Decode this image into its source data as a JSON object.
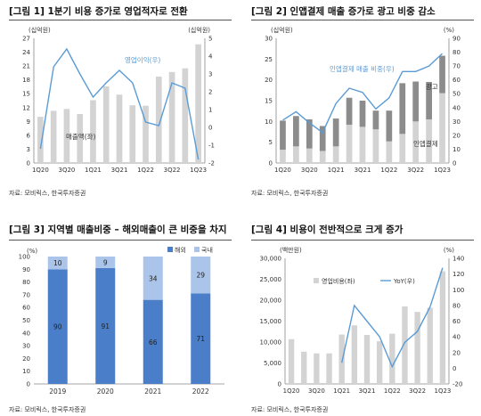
{
  "panels": {
    "fig1": {
      "title": "[그림 1] 1분기 비용 증가로 영업적자로 전환",
      "source": "자료: 모비릭스, 한국투자증권"
    },
    "fig2": {
      "title": "[그림 2] 인앱결제 매출 증가로 광고 비중 감소",
      "source": "자료: 모비릭스, 한국투자증권"
    },
    "fig3": {
      "title": "[그림 3] 지역별 매출비중 – 해외매출이 큰 비중을 차지",
      "source": "자료: 모비릭스, 한국투자증권"
    },
    "fig4": {
      "title": "[그림 4] 비용이 전반적으로 크게 증가",
      "source": "자료: 모비릭스, 한국투자증권"
    }
  },
  "chart_data": [
    {
      "type": "bar",
      "unit_left": "(십억원)",
      "unit_right": "(십억원)",
      "x": [
        "1Q20",
        "2Q20",
        "3Q20",
        "4Q20",
        "1Q21",
        "2Q21",
        "3Q21",
        "4Q21",
        "1Q22",
        "2Q22",
        "3Q22",
        "4Q22",
        "1Q23"
      ],
      "tick_labels": [
        "1Q20",
        "3Q20",
        "1Q21",
        "3Q21",
        "1Q22",
        "3Q22",
        "1Q23"
      ],
      "ylim_left": [
        0,
        27
      ],
      "yticks_left": [
        0,
        3,
        6,
        9,
        12,
        15,
        18,
        21,
        24,
        27
      ],
      "ylim_right": [
        -2,
        5
      ],
      "yticks_right": [
        -2,
        -1,
        0,
        1,
        2,
        3,
        4,
        5
      ],
      "series": [
        {
          "name": "매출액(좌)",
          "type": "bar",
          "axis": "left",
          "color": "#d3d3d3",
          "values": [
            10.0,
            11.3,
            11.7,
            10.6,
            13.6,
            16.6,
            14.8,
            12.5,
            12.4,
            18.7,
            19.7,
            20.5,
            25.7
          ]
        },
        {
          "name": "영업이익(우)",
          "type": "line",
          "axis": "right",
          "color": "#5b9bd5",
          "values": [
            -1.2,
            3.4,
            4.4,
            3.0,
            1.7,
            2.5,
            3.2,
            2.5,
            0.3,
            0.1,
            2.5,
            2.2,
            -1.8
          ]
        }
      ]
    },
    {
      "type": "bar",
      "unit_left": "(십억원)",
      "unit_right": "(%)",
      "x": [
        "1Q20",
        "2Q20",
        "3Q20",
        "4Q20",
        "1Q21",
        "2Q21",
        "3Q21",
        "4Q21",
        "1Q22",
        "2Q22",
        "3Q22",
        "4Q22",
        "1Q23"
      ],
      "tick_labels": [
        "1Q20",
        "3Q20",
        "1Q21",
        "3Q21",
        "1Q22",
        "3Q22",
        "1Q23"
      ],
      "ylim_left": [
        0,
        30
      ],
      "yticks_left": [
        0,
        5,
        10,
        15,
        20,
        25,
        30
      ],
      "ylim_right": [
        0,
        90
      ],
      "yticks_right": [
        0,
        10,
        20,
        30,
        40,
        50,
        60,
        70,
        80,
        90
      ],
      "series": [
        {
          "name": "광고",
          "type": "bar",
          "axis": "left",
          "color": "#d3d3d3",
          "values": [
            3.2,
            4.0,
            3.5,
            2.9,
            4.0,
            9.2,
            8.7,
            8.1,
            5.2,
            7.0,
            10.0,
            10.5,
            16.8
          ]
        },
        {
          "name": "인앱결제",
          "type": "bar",
          "axis": "left",
          "color": "#8c8c8c",
          "values": [
            7.0,
            7.3,
            7.0,
            6.0,
            6.7,
            6.5,
            6.3,
            4.5,
            7.4,
            12.2,
            9.6,
            9.0,
            9.0
          ]
        },
        {
          "name": "인앱결제 매출 비중(우)",
          "type": "line",
          "axis": "right",
          "color": "#5b9bd5",
          "values": [
            31,
            37,
            29,
            22,
            43,
            54,
            51,
            39,
            47,
            66,
            66,
            70,
            79
          ]
        }
      ]
    },
    {
      "type": "bar",
      "stacked": true,
      "unit_left": "(%)",
      "categories": [
        "2019",
        "2020",
        "2021",
        "2022"
      ],
      "ylim": [
        0,
        100
      ],
      "yticks": [
        0,
        10,
        20,
        30,
        40,
        50,
        60,
        70,
        80,
        90,
        100
      ],
      "series": [
        {
          "name": "해외",
          "color": "#4a7ec8",
          "values": [
            90,
            91,
            66,
            71
          ]
        },
        {
          "name": "국내",
          "color": "#aac4ea",
          "values": [
            10,
            9,
            34,
            29
          ]
        }
      ]
    },
    {
      "type": "bar",
      "unit_left": "(백만원)",
      "unit_right": "(%)",
      "x": [
        "1Q20",
        "2Q20",
        "3Q20",
        "4Q20",
        "1Q21",
        "2Q21",
        "3Q21",
        "4Q21",
        "1Q22",
        "2Q22",
        "3Q22",
        "4Q22",
        "1Q23"
      ],
      "tick_labels": [
        "1Q20",
        "3Q20",
        "1Q21",
        "3Q21",
        "1Q22",
        "3Q22",
        "1Q23"
      ],
      "ylim_left": [
        0,
        30000
      ],
      "yticks_left": [
        0,
        5000,
        10000,
        15000,
        20000,
        25000,
        30000
      ],
      "ylim_right": [
        -20,
        140
      ],
      "yticks_right": [
        -20,
        0,
        20,
        40,
        60,
        80,
        100,
        120,
        140
      ],
      "series": [
        {
          "name": "영업비용(좌)",
          "type": "bar",
          "axis": "left",
          "color": "#d3d3d3",
          "values": [
            10700,
            7700,
            7300,
            7300,
            11800,
            14000,
            11700,
            10200,
            12000,
            18500,
            17200,
            18200,
            26900
          ]
        },
        {
          "name": "YoY(우)",
          "type": "line",
          "axis": "right",
          "color": "#5b9bd5",
          "values": [
            null,
            null,
            null,
            null,
            7,
            80,
            60,
            40,
            2,
            33,
            47,
            78,
            128
          ]
        }
      ]
    }
  ]
}
